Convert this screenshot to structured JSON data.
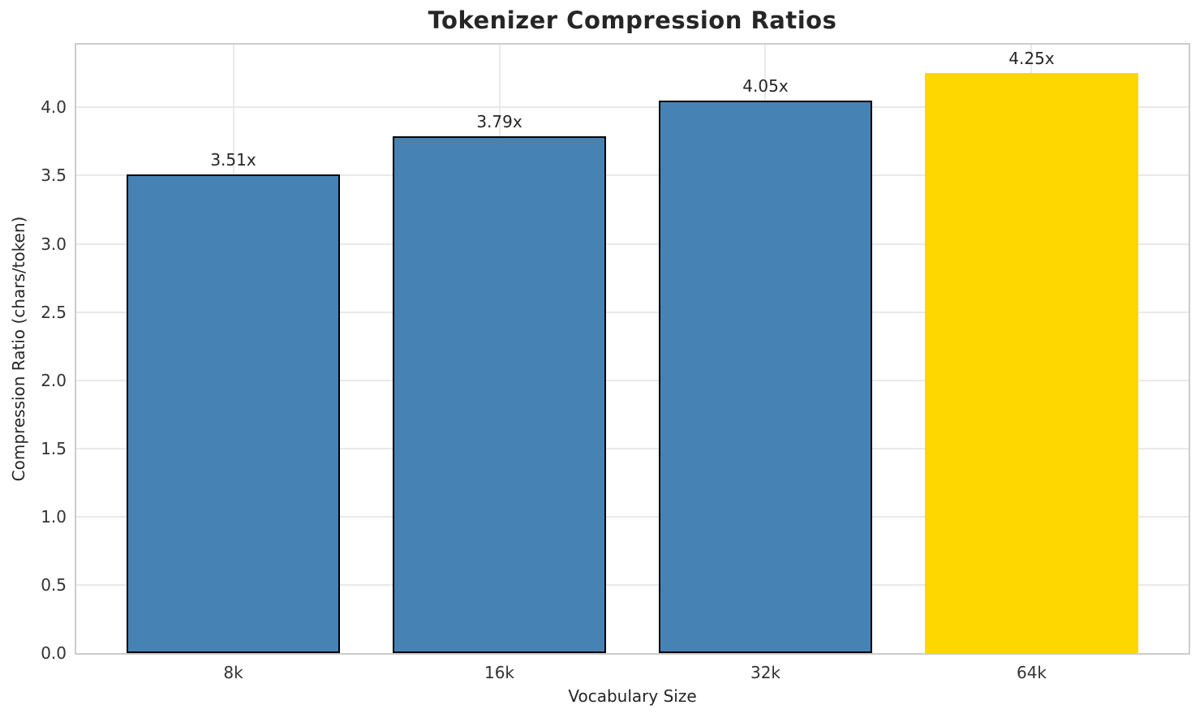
{
  "page": {
    "background": "#ffffff"
  },
  "chart_data": {
    "type": "bar",
    "title": "Tokenizer Compression Ratios",
    "xlabel": "Vocabulary Size",
    "ylabel": "Compression Ratio (chars/token)",
    "categories": [
      "8k",
      "16k",
      "32k",
      "64k"
    ],
    "values": [
      3.51,
      3.79,
      4.05,
      4.25
    ],
    "bar_labels": [
      "3.51x",
      "3.79x",
      "4.05x",
      "4.25x"
    ],
    "bar_colors": [
      "#4682B4",
      "#4682B4",
      "#4682B4",
      "#FFD700"
    ],
    "bar_edge_colors": [
      "#000000",
      "#000000",
      "#000000",
      "none"
    ],
    "highlight_index": 3,
    "ylim": [
      0,
      4.46
    ],
    "xlim": [
      -0.59,
      3.59
    ],
    "bar_width": 0.8,
    "yticks": [
      0,
      0.5,
      1,
      1.5,
      2,
      2.5,
      3,
      3.5,
      4
    ],
    "grid": true,
    "legend_position": "none",
    "styles": {
      "bar_default_color": "#4682B4",
      "highlight_color": "#FFD700",
      "bar_edge_color": "#000000",
      "grid_color": "#e9e9e9",
      "spine_color": "#cccccc",
      "text_color": "#262626"
    }
  }
}
